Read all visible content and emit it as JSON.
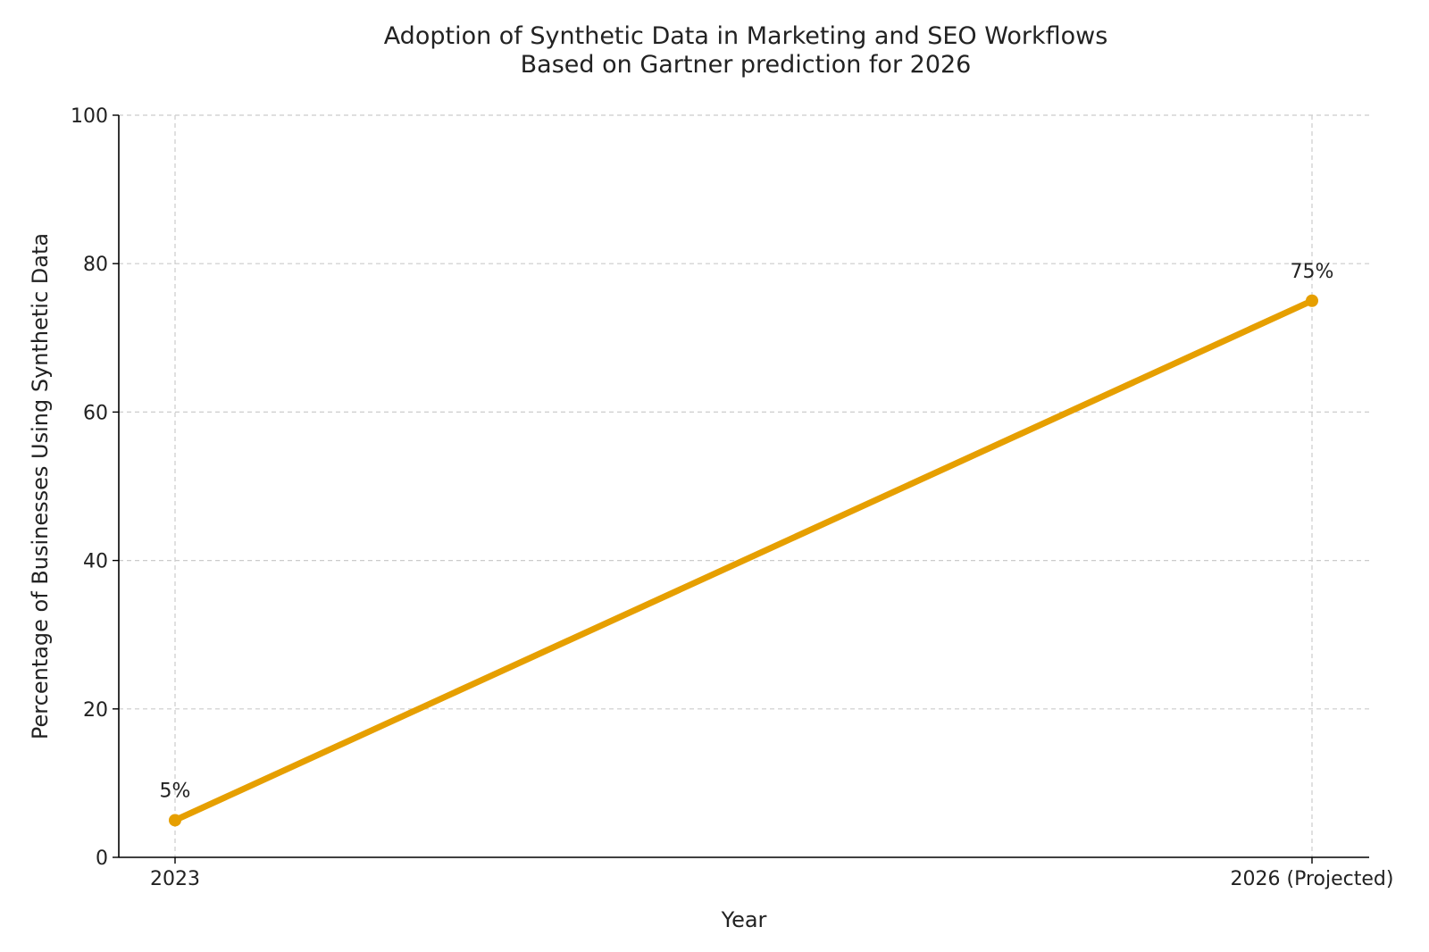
{
  "chart_data": {
    "type": "line",
    "title": "Adoption of Synthetic Data in Marketing and SEO Workflows",
    "subtitle": "Based on Gartner prediction for 2026",
    "xlabel": "Year",
    "ylabel": "Percentage of Businesses Using Synthetic Data",
    "categories": [
      "2023",
      "2026 (Projected)"
    ],
    "series": [
      {
        "values": [
          5,
          75
        ],
        "data_labels": [
          "5%",
          "75%"
        ],
        "color": "#E69F00"
      }
    ],
    "ylim": [
      0,
      100
    ],
    "yticks": [
      0,
      20,
      40,
      60,
      80,
      100
    ],
    "grid": true
  }
}
